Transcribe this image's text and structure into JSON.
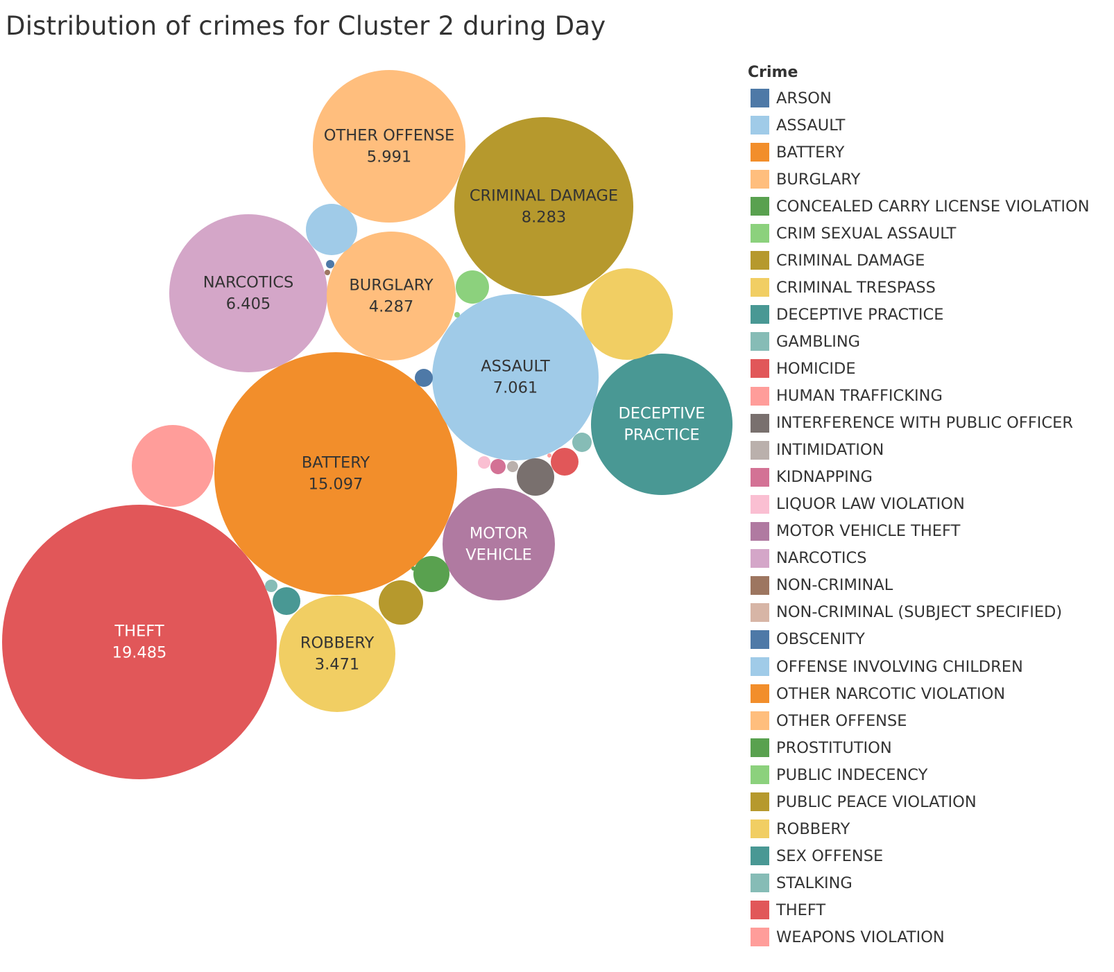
{
  "chart_data": {
    "type": "packed-bubble",
    "title": "Distribution of crimes for Cluster 2 during Day",
    "legend_title": "Crime",
    "legend_position": "right",
    "legend": [
      {
        "name": "ARSON",
        "color": "#4e79a7"
      },
      {
        "name": "ASSAULT",
        "color": "#a0cbe8"
      },
      {
        "name": "BATTERY",
        "color": "#f28e2b"
      },
      {
        "name": "BURGLARY",
        "color": "#ffbe7d"
      },
      {
        "name": "CONCEALED CARRY LICENSE VIOLATION",
        "color": "#59a14f"
      },
      {
        "name": "CRIM SEXUAL ASSAULT",
        "color": "#8cd17d"
      },
      {
        "name": "CRIMINAL DAMAGE",
        "color": "#b6992d"
      },
      {
        "name": "CRIMINAL TRESPASS",
        "color": "#f1ce63"
      },
      {
        "name": "DECEPTIVE PRACTICE",
        "color": "#499894"
      },
      {
        "name": "GAMBLING",
        "color": "#86bcb6"
      },
      {
        "name": "HOMICIDE",
        "color": "#e15759"
      },
      {
        "name": "HUMAN TRAFFICKING",
        "color": "#ff9d9a"
      },
      {
        "name": "INTERFERENCE WITH PUBLIC OFFICER",
        "color": "#79706e"
      },
      {
        "name": "INTIMIDATION",
        "color": "#bab0ac"
      },
      {
        "name": "KIDNAPPING",
        "color": "#d37295"
      },
      {
        "name": "LIQUOR LAW VIOLATION",
        "color": "#fabfd2"
      },
      {
        "name": "MOTOR VEHICLE THEFT",
        "color": "#b07aa1"
      },
      {
        "name": "NARCOTICS",
        "color": "#d4a6c8"
      },
      {
        "name": "NON-CRIMINAL",
        "color": "#9d7660"
      },
      {
        "name": "NON-CRIMINAL (SUBJECT SPECIFIED)",
        "color": "#d7b5a6"
      },
      {
        "name": "OBSCENITY",
        "color": "#4e79a7"
      },
      {
        "name": "OFFENSE INVOLVING CHILDREN",
        "color": "#a0cbe8"
      },
      {
        "name": "OTHER NARCOTIC VIOLATION",
        "color": "#f28e2b"
      },
      {
        "name": "OTHER OFFENSE",
        "color": "#ffbe7d"
      },
      {
        "name": "PROSTITUTION",
        "color": "#59a14f"
      },
      {
        "name": "PUBLIC INDECENCY",
        "color": "#8cd17d"
      },
      {
        "name": "PUBLIC PEACE VIOLATION",
        "color": "#b6992d"
      },
      {
        "name": "ROBBERY",
        "color": "#f1ce63"
      },
      {
        "name": "SEX OFFENSE",
        "color": "#499894"
      },
      {
        "name": "STALKING",
        "color": "#86bcb6"
      },
      {
        "name": "THEFT",
        "color": "#e15759"
      },
      {
        "name": "WEAPONS VIOLATION",
        "color": "#ff9d9a"
      }
    ],
    "bubbles": [
      {
        "crime": "THEFT",
        "label": [
          "THEFT"
        ],
        "value": "19.485",
        "color": "#e15759",
        "text_color": "#ffffff"
      },
      {
        "crime": "BATTERY",
        "label": [
          "BATTERY"
        ],
        "value": "15.097",
        "color": "#f28e2b",
        "text_color": "#333333"
      },
      {
        "crime": "CRIMINAL DAMAGE",
        "label": [
          "CRIMINAL DAMAGE"
        ],
        "value": "8.283",
        "color": "#b6992d",
        "text_color": "#333333"
      },
      {
        "crime": "ASSAULT",
        "label": [
          "ASSAULT"
        ],
        "value": "7.061",
        "color": "#a0cbe8",
        "text_color": "#333333"
      },
      {
        "crime": "NARCOTICS",
        "label": [
          "NARCOTICS"
        ],
        "value": "6.405",
        "color": "#d4a6c8",
        "text_color": "#333333"
      },
      {
        "crime": "OTHER OFFENSE",
        "label": [
          "OTHER OFFENSE"
        ],
        "value": "5.991",
        "color": "#ffbe7d",
        "text_color": "#333333"
      },
      {
        "crime": "DECEPTIVE PRACTICE",
        "label": [
          "DECEPTIVE",
          "PRACTICE"
        ],
        "value": null,
        "color": "#499894",
        "text_color": "#ffffff"
      },
      {
        "crime": "BURGLARY",
        "label": [
          "BURGLARY"
        ],
        "value": "4.287",
        "color": "#ffbe7d",
        "text_color": "#333333"
      },
      {
        "crime": "ROBBERY",
        "label": [
          "ROBBERY"
        ],
        "value": "3.471",
        "color": "#f1ce63",
        "text_color": "#333333"
      },
      {
        "crime": "MOTOR VEHICLE THEFT",
        "label": [
          "MOTOR",
          "VEHICLE"
        ],
        "value": null,
        "color": "#b07aa1",
        "text_color": "#ffffff"
      },
      {
        "crime": "CRIMINAL TRESPASS",
        "label": [],
        "value": null,
        "color": "#f1ce63"
      },
      {
        "crime": "WEAPONS VIOLATION",
        "label": [],
        "value": null,
        "color": "#ff9d9a"
      },
      {
        "crime": "OFFENSE INVOLVING CHILDREN",
        "label": [],
        "value": null,
        "color": "#a0cbe8"
      },
      {
        "crime": "PUBLIC PEACE VIOLATION",
        "label": [],
        "value": null,
        "color": "#b6992d"
      },
      {
        "crime": "INTERFERENCE WITH PUBLIC OFFICER",
        "label": [],
        "value": null,
        "color": "#79706e"
      },
      {
        "crime": "PROSTITUTION",
        "label": [],
        "value": null,
        "color": "#59a14f"
      },
      {
        "crime": "CRIM SEXUAL ASSAULT",
        "label": [],
        "value": null,
        "color": "#8cd17d"
      },
      {
        "crime": "HOMICIDE",
        "label": [],
        "value": null,
        "color": "#e15759"
      },
      {
        "crime": "SEX OFFENSE",
        "label": [],
        "value": null,
        "color": "#499894"
      },
      {
        "crime": "STALKING",
        "label": [],
        "value": null,
        "color": "#86bcb6"
      },
      {
        "crime": "ARSON",
        "label": [],
        "value": null,
        "color": "#4e79a7"
      },
      {
        "crime": "KIDNAPPING",
        "label": [],
        "value": null,
        "color": "#d37295"
      },
      {
        "crime": "LIQUOR LAW VIOLATION",
        "label": [],
        "value": null,
        "color": "#fabfd2"
      },
      {
        "crime": "GAMBLING",
        "label": [],
        "value": null,
        "color": "#86bcb6"
      },
      {
        "crime": "INTIMIDATION",
        "label": [],
        "value": null,
        "color": "#bab0ac"
      },
      {
        "crime": "OBSCENITY",
        "label": [],
        "value": null,
        "color": "#4e79a7"
      },
      {
        "crime": "NON-CRIMINAL",
        "label": [],
        "value": null,
        "color": "#9d7660"
      },
      {
        "crime": "CONCEALED CARRY LICENSE VIOLATION",
        "label": [],
        "value": null,
        "color": "#59a14f"
      },
      {
        "crime": "PUBLIC INDECENCY",
        "label": [],
        "value": null,
        "color": "#8cd17d"
      },
      {
        "crime": "HUMAN TRAFFICKING",
        "label": [],
        "value": null,
        "color": "#ff9d9a"
      }
    ]
  }
}
